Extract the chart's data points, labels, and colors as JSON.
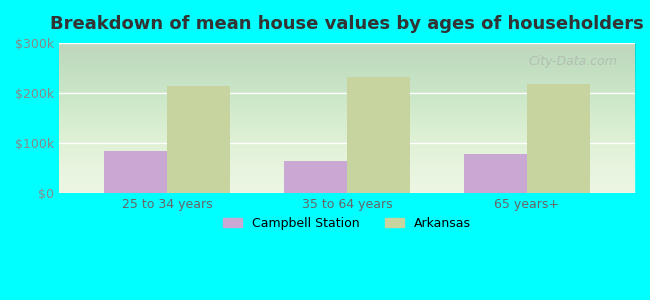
{
  "title": "Breakdown of mean house values by ages of householders",
  "categories": [
    "25 to 34 years",
    "35 to 64 years",
    "65 years+"
  ],
  "campbell_station": [
    85000,
    65000,
    78000
  ],
  "arkansas": [
    215000,
    232000,
    218000
  ],
  "campbell_color": "#c9a8d4",
  "arkansas_color": "#c8d4a0",
  "ylim": [
    0,
    300000
  ],
  "yticks": [
    0,
    100000,
    200000,
    300000
  ],
  "ytick_labels": [
    "$0",
    "$100k",
    "$200k",
    "$300k"
  ],
  "background_color": "#00ffff",
  "legend_campbell": "Campbell Station",
  "legend_arkansas": "Arkansas",
  "bar_width": 0.35,
  "watermark": "City-Data.com"
}
